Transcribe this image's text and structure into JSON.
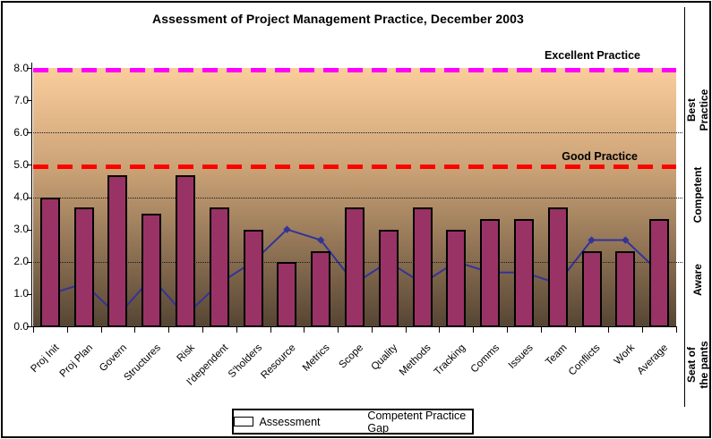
{
  "chart_data": {
    "type": "bar",
    "title": "Assessment of Project Management Practice, December 2003",
    "categories": [
      "Proj Init",
      "Proj Plan",
      "Govern",
      "Structures",
      "Risk",
      "I'dependent",
      "S'holders",
      "Resource",
      "Metrics",
      "Scope",
      "Quality",
      "Methods",
      "Tracking",
      "Comms",
      "Issues",
      "Team",
      "Conflicts",
      "Work",
      "Average"
    ],
    "series": [
      {
        "name": "Assessment",
        "type": "bar",
        "color": "#993366",
        "values": [
          4.0,
          3.67,
          4.67,
          3.5,
          4.67,
          3.67,
          3.0,
          2.0,
          2.33,
          3.67,
          3.0,
          3.67,
          3.0,
          3.33,
          3.33,
          3.67,
          2.33,
          2.33,
          3.32
        ]
      },
      {
        "name": "Competent Practice Gap",
        "type": "line",
        "color": "#333399",
        "values": [
          1.0,
          1.33,
          0.33,
          1.5,
          0.33,
          1.33,
          2.0,
          3.0,
          2.67,
          1.33,
          2.0,
          1.33,
          2.0,
          1.67,
          1.67,
          1.33,
          2.67,
          2.67,
          1.68
        ]
      }
    ],
    "xlabel": "",
    "ylabel": "",
    "ylim": [
      0,
      8
    ],
    "ytick_step": 1,
    "ytick_labels": [
      "0.0",
      "1.0",
      "2.0",
      "3.0",
      "4.0",
      "5.0",
      "6.0",
      "7.0",
      "8.0"
    ],
    "gridlines_at": [
      2,
      4,
      6
    ],
    "grid": "horizontal dotted",
    "legend_position": "bottom",
    "reference_lines": [
      {
        "label": "Excellent Practice",
        "value": 8,
        "color": "#FF00FF"
      },
      {
        "label": "Good Practice",
        "value": 5,
        "color": "#FF0000"
      }
    ],
    "right_zone_labels": [
      "Best\nPractice",
      "Competent",
      "Aware",
      "Seat of\nthe pants"
    ]
  },
  "legend": {
    "items": [
      {
        "label": "Assessment",
        "marker": "bar-swatch"
      },
      {
        "label": "Competent Practice Gap",
        "marker": "line-diamond"
      }
    ]
  },
  "colors": {
    "bar_fill": "#993366",
    "gap_line": "#333399",
    "excellent_line": "#FF00FF",
    "good_line": "#FF0000",
    "plot_gradient_top": "#FBCD9C",
    "plot_gradient_bottom": "#564534",
    "frame_border": "#000000",
    "background": "#FFFFFF"
  }
}
